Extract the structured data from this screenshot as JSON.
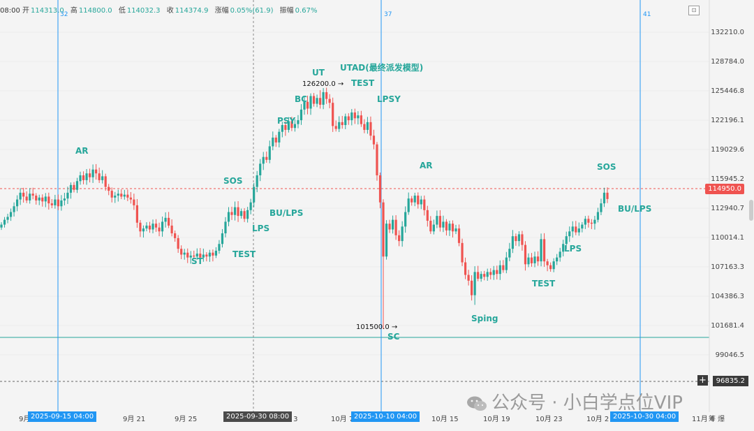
{
  "header": {
    "time_partial": "08:00",
    "open_label": "开",
    "open": "114313.0",
    "high_label": "高",
    "high": "114800.0",
    "low_label": "低",
    "low": "114032.3",
    "close_label": "收",
    "close": "114374.9",
    "change_label": "涨幅",
    "change": "0.05%(61.9)",
    "amp_label": "振幅",
    "amp": "0.67%"
  },
  "price_axis": {
    "labels": [
      "132210.0",
      "128784.0",
      "125446.8",
      "122196.1",
      "119029.6",
      "115945.2",
      "112940.7",
      "110014.1",
      "107163.3",
      "104386.3",
      "101681.4",
      "99046.5"
    ],
    "current_price": "114950.0",
    "crosshair_price": "96835.2"
  },
  "time_axis": {
    "labels": [
      "9月",
      "9月 21",
      "9月 25",
      "月 3",
      "10月 7",
      "10月 15",
      "10月 19",
      "10月 23",
      "10月 2",
      "11月 4"
    ],
    "boxes": [
      "2025-09-15 04:00",
      "2025-09-30 08:00",
      "2025-10-10 04:00",
      "2025-10-30 04:00"
    ],
    "tail": "筹 爆"
  },
  "vertical_line_numbers": [
    "32",
    "37",
    "41"
  ],
  "extremes": {
    "high": "126200.0",
    "low": "101500.0"
  },
  "wyckoff_labels": {
    "ar1": "AR",
    "sos1": "SOS",
    "st": "ST",
    "test1": "TEST",
    "lps1": "LPS",
    "bulps1": "BU/LPS",
    "psy": "PSY",
    "bc": "BC",
    "ut": "UT",
    "utad": "UTAD(最终派发模型)",
    "test2": "TEST",
    "lpsy": "LPSY",
    "sc": "SC",
    "ar2": "AR",
    "sping": "Sping",
    "test3": "TEST",
    "lps2": "LPS",
    "sos2": "SOS",
    "bulps2": "BU/LPS"
  },
  "watermark": "公众号 · 小白学点位VIP",
  "colors": {
    "up": "#26a69a",
    "down": "#ef5350",
    "vline": "#2196f3",
    "support": "#26a69a",
    "label": "#26a69a"
  },
  "chart_data": {
    "type": "candlestick",
    "symbol_timeframe": "4h",
    "y_range": [
      96835.2,
      132210.0
    ],
    "support_level": 100850,
    "closes": [
      112300,
      112800,
      113100,
      113600,
      114200,
      114900,
      115600,
      115200,
      114800,
      115500,
      115300,
      114800,
      115100,
      114700,
      115200,
      114500,
      114300,
      114900,
      114200,
      114800,
      115000,
      115600,
      116400,
      115900,
      116800,
      117400,
      116900,
      117600,
      117200,
      118000,
      117600,
      116900,
      117300,
      116200,
      115800,
      115100,
      115300,
      115500,
      115200,
      115400,
      115100,
      114900,
      114300,
      112500,
      111600,
      111900,
      112200,
      111800,
      112400,
      112000,
      111600,
      112600,
      113000,
      112200,
      111400,
      110900,
      109800,
      109200,
      109400,
      108900,
      109100,
      109000,
      109300,
      108900,
      109200,
      109000,
      109400,
      109100,
      109600,
      110300,
      111400,
      112600,
      113600,
      113300,
      114100,
      113200,
      113700,
      112900,
      113800,
      114600,
      116200,
      117400,
      118600,
      119300,
      119000,
      120400,
      121300,
      120800,
      121900,
      122600,
      122100,
      123000,
      122300,
      122700,
      123100,
      124200,
      125000,
      124300,
      125600,
      124800,
      125400,
      124700,
      126000,
      125300,
      124900,
      122500,
      122200,
      122900,
      122600,
      123500,
      123100,
      123900,
      123300,
      123600,
      122700,
      122100,
      122900,
      121500,
      120600,
      117400,
      114600,
      109000,
      112400,
      111800,
      112800,
      111200,
      110600,
      112100,
      113600,
      115000,
      114600,
      115300,
      114400,
      114900,
      113800,
      112700,
      111600,
      112300,
      113200,
      112000,
      112600,
      111700,
      112400,
      111600,
      111900,
      110400,
      108400,
      107100,
      106500,
      105000,
      107400,
      106700,
      107200,
      106900,
      107400,
      107100,
      107600,
      107200,
      108100,
      107600,
      108900,
      109800,
      111100,
      110600,
      111300,
      110200,
      108200,
      108900,
      108300,
      109000,
      108500,
      110800,
      108500,
      108100,
      107700,
      108500,
      108900,
      109500,
      110300,
      111100,
      111600,
      112100,
      111500,
      111900,
      112300,
      112900,
      112500,
      112400,
      112800,
      113600,
      114500,
      115600,
      114950
    ]
  }
}
